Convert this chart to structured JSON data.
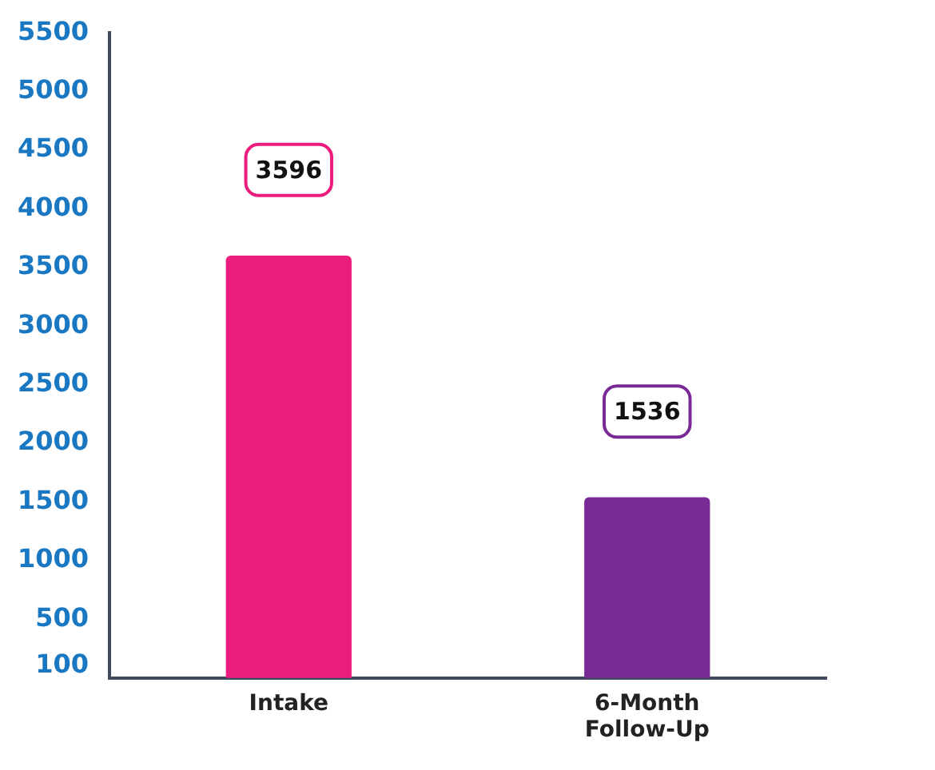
{
  "chart_data": {
    "type": "bar",
    "categories": [
      "Intake",
      "6-Month Follow-Up"
    ],
    "values": [
      3596,
      1536
    ],
    "colors": [
      "#ec1c7c",
      "#7a2a96"
    ],
    "ylim": [
      0,
      5500
    ],
    "yticks": [
      100,
      500,
      1000,
      1500,
      2000,
      2500,
      3000,
      3500,
      4000,
      4500,
      5000,
      5500
    ],
    "grid": false,
    "data_labels": true
  }
}
